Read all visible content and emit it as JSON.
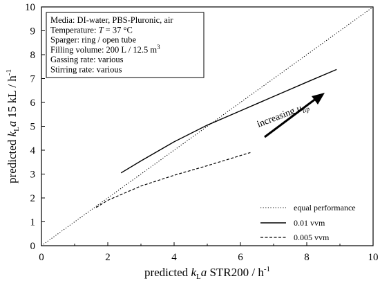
{
  "chart_data": {
    "type": "line",
    "xlabel": {
      "pre": "predicted ",
      "k": "k",
      "sub": "L",
      "a": "a",
      "post": " STR200 / h",
      "sup": "-1"
    },
    "ylabel": {
      "pre": "predicted ",
      "k": "k",
      "sub": "L",
      "a": "a",
      "post": " 15 kL / h",
      "sup": "-1"
    },
    "xlim": [
      0,
      10
    ],
    "ylim": [
      0,
      10
    ],
    "x_ticks": [
      "0",
      "2",
      "4",
      "6",
      "8",
      "10"
    ],
    "y_ticks": [
      "0",
      "1",
      "2",
      "3",
      "4",
      "5",
      "6",
      "7",
      "8",
      "9",
      "10"
    ],
    "grid": false,
    "info_box": {
      "lines": [
        {
          "text": "Media: DI-water, PBS-Pluronic, air"
        },
        {
          "text": "Temperature: ",
          "italic": "T",
          "rest": " = 37 °C"
        },
        {
          "text": "Sparger: ring / open tube"
        },
        {
          "text": "Filling volume: 200 L / 12.5 m",
          "sup": "3"
        },
        {
          "text": "Gassing rate: various"
        },
        {
          "text": "Stirring rate: various"
        }
      ]
    },
    "annotation": {
      "text": "increasing ",
      "italic": "u",
      "sub": "tip"
    },
    "series": [
      {
        "name": "equal performance",
        "style": "dotted",
        "x": [
          0,
          10
        ],
        "y": [
          0,
          10
        ]
      },
      {
        "name": "0.01 vvm",
        "style": "solid",
        "x": [
          2.4,
          3.0,
          4.0,
          5.0,
          6.0,
          7.0,
          8.0,
          8.9
        ],
        "y": [
          3.05,
          3.55,
          4.35,
          5.05,
          5.65,
          6.25,
          6.85,
          7.38
        ]
      },
      {
        "name": "0.005 vvm",
        "style": "dashed",
        "x": [
          1.65,
          2.0,
          3.0,
          4.0,
          5.0,
          6.3
        ],
        "y": [
          1.6,
          1.9,
          2.5,
          2.95,
          3.35,
          3.9
        ]
      }
    ],
    "legend_position": "bottom-right"
  }
}
